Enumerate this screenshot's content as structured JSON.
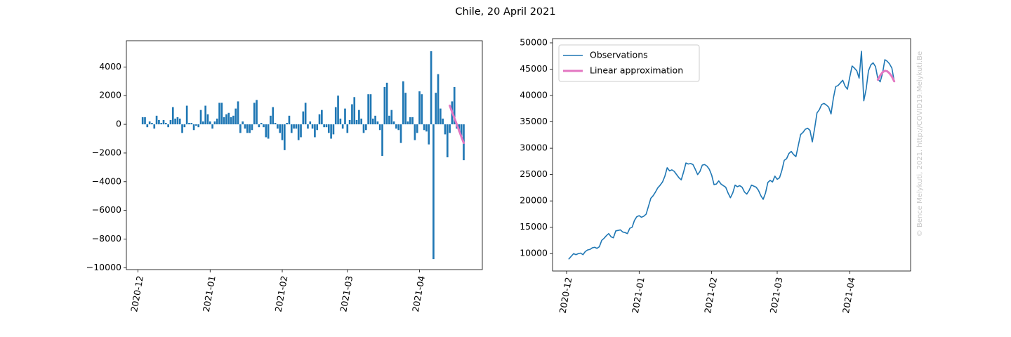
{
  "title": "Chile, 20 April 2021",
  "annotation": "© Bence Melykuti, 2021. http://COVID19.Melykuti.Be",
  "chart_data": [
    {
      "type": "bar",
      "xlim": [
        -5,
        148
      ],
      "xticks": [
        {
          "value": 0,
          "label": "2020-12"
        },
        {
          "value": 31,
          "label": "2021-01"
        },
        {
          "value": 62,
          "label": "2021-02"
        },
        {
          "value": 90,
          "label": "2021-03"
        },
        {
          "value": 121,
          "label": "2021-04"
        }
      ],
      "ylim": [
        -10130,
        5830
      ],
      "yticks": [
        {
          "value": -10000,
          "label": "−10000"
        },
        {
          "value": -8000,
          "label": "−8000"
        },
        {
          "value": -6000,
          "label": "−6000"
        },
        {
          "value": -4000,
          "label": "−4000"
        },
        {
          "value": -2000,
          "label": "−2000"
        },
        0,
        2000,
        4000
      ],
      "series": [
        {
          "type": "bar",
          "color": "#1f77b4",
          "x": [
            2,
            3,
            4,
            5,
            6,
            7,
            8,
            9,
            10,
            11,
            12,
            13,
            14,
            15,
            16,
            17,
            18,
            19,
            20,
            21,
            22,
            23,
            24,
            25,
            26,
            27,
            28,
            29,
            30,
            31,
            32,
            33,
            34,
            35,
            36,
            37,
            38,
            39,
            40,
            41,
            42,
            43,
            44,
            45,
            46,
            47,
            48,
            49,
            50,
            51,
            52,
            53,
            54,
            55,
            56,
            57,
            58,
            59,
            60,
            61,
            62,
            63,
            64,
            65,
            66,
            67,
            68,
            69,
            70,
            71,
            72,
            73,
            74,
            75,
            76,
            77,
            78,
            79,
            80,
            81,
            82,
            83,
            84,
            85,
            86,
            87,
            88,
            89,
            90,
            91,
            92,
            93,
            94,
            95,
            96,
            97,
            98,
            99,
            100,
            101,
            102,
            103,
            104,
            105,
            106,
            107,
            108,
            109,
            110,
            111,
            112,
            113,
            114,
            115,
            116,
            117,
            118,
            119,
            120,
            121,
            122,
            123,
            124,
            125,
            126,
            127,
            128,
            129,
            130,
            131,
            132,
            133,
            134,
            135,
            136,
            137,
            138,
            139,
            140
          ],
          "values": [
            500,
            500,
            -200,
            200,
            100,
            -300,
            600,
            300,
            100,
            300,
            100,
            -200,
            300,
            1200,
            400,
            500,
            400,
            -600,
            -200,
            1300,
            100,
            100,
            -400,
            -100,
            -200,
            1000,
            200,
            1300,
            700,
            200,
            -300,
            200,
            400,
            1500,
            1500,
            500,
            700,
            800,
            500,
            600,
            1100,
            1600,
            -600,
            200,
            -300,
            -600,
            -600,
            -400,
            1500,
            1700,
            -200,
            100,
            -200,
            -900,
            -1000,
            600,
            1200,
            100,
            -300,
            -600,
            -1100,
            -1800,
            100,
            600,
            -600,
            -300,
            -300,
            -1100,
            -900,
            900,
            1500,
            -300,
            200,
            -300,
            -900,
            -400,
            700,
            1000,
            -200,
            -200,
            -600,
            -1000,
            -700,
            1200,
            2000,
            400,
            -300,
            1100,
            -600,
            300,
            1400,
            1900,
            300,
            1000,
            400,
            -600,
            -400,
            2100,
            2100,
            400,
            600,
            200,
            -400,
            -2200,
            2600,
            2900,
            600,
            1000,
            200,
            -300,
            -400,
            -1300,
            3000,
            2200,
            200,
            500,
            500,
            -1100,
            -600,
            2300,
            2100,
            -400,
            -500,
            -1400,
            5100,
            -9400,
            2200,
            3500,
            1100,
            400,
            -700,
            -2300,
            -600,
            1600,
            2600,
            -300,
            -500,
            -800,
            -2500
          ]
        },
        {
          "type": "line",
          "color": "#e377c2",
          "x": [
            134,
            135,
            136,
            137,
            138,
            139,
            140
          ],
          "values": [
            1300,
            870,
            430,
            0,
            -430,
            -870,
            -1300
          ]
        }
      ]
    },
    {
      "type": "line",
      "xlim": [
        -6,
        147
      ],
      "xticks": [
        {
          "value": 0,
          "label": "2020-12"
        },
        {
          "value": 31,
          "label": "2021-01"
        },
        {
          "value": 62,
          "label": "2021-02"
        },
        {
          "value": 90,
          "label": "2021-03"
        },
        {
          "value": 121,
          "label": "2021-04"
        }
      ],
      "ylim": [
        6700,
        50800
      ],
      "yticks": [
        10000,
        15000,
        20000,
        25000,
        30000,
        35000,
        40000,
        45000,
        50000
      ],
      "legend": "upper left",
      "series": [
        {
          "name": "Observations",
          "type": "line",
          "color": "#1f77b4",
          "x": [
            1,
            2,
            3,
            4,
            5,
            6,
            7,
            8,
            9,
            10,
            11,
            12,
            13,
            14,
            15,
            16,
            17,
            18,
            19,
            20,
            21,
            22,
            23,
            24,
            25,
            26,
            27,
            28,
            29,
            30,
            31,
            32,
            33,
            34,
            35,
            36,
            37,
            38,
            39,
            40,
            41,
            42,
            43,
            44,
            45,
            46,
            47,
            48,
            49,
            50,
            51,
            52,
            53,
            54,
            55,
            56,
            57,
            58,
            59,
            60,
            61,
            62,
            63,
            64,
            65,
            66,
            67,
            68,
            69,
            70,
            71,
            72,
            73,
            74,
            75,
            76,
            77,
            78,
            79,
            80,
            81,
            82,
            83,
            84,
            85,
            86,
            87,
            88,
            89,
            90,
            91,
            92,
            93,
            94,
            95,
            96,
            97,
            98,
            99,
            100,
            101,
            102,
            103,
            104,
            105,
            106,
            107,
            108,
            109,
            110,
            111,
            112,
            113,
            114,
            115,
            116,
            117,
            118,
            119,
            120,
            121,
            122,
            123,
            124,
            125,
            126,
            127,
            128,
            129,
            130,
            131,
            132,
            133,
            134,
            135,
            136,
            137,
            138,
            139,
            140
          ],
          "values": [
            9000,
            9500,
            10000,
            9800,
            10000,
            10100,
            9800,
            10400,
            10700,
            10800,
            11100,
            11200,
            11000,
            11300,
            12500,
            12900,
            13400,
            13800,
            13200,
            13000,
            14300,
            14400,
            14500,
            14100,
            14000,
            13800,
            14800,
            15000,
            16300,
            17000,
            17200,
            16900,
            17100,
            17500,
            19000,
            20500,
            21000,
            21700,
            22500,
            23000,
            23600,
            24700,
            26300,
            25700,
            25900,
            25600,
            25000,
            24400,
            24000,
            25500,
            27200,
            27000,
            27100,
            26900,
            26000,
            25000,
            25600,
            26800,
            26900,
            26600,
            26000,
            24900,
            23100,
            23200,
            23800,
            23200,
            22900,
            22600,
            21500,
            20600,
            21500,
            23000,
            22700,
            22900,
            22600,
            21700,
            21300,
            22000,
            23000,
            22800,
            22600,
            22000,
            21000,
            20300,
            21500,
            23500,
            23900,
            23600,
            24700,
            24100,
            24400,
            25800,
            27700,
            28000,
            29000,
            29400,
            28800,
            28400,
            30500,
            32600,
            33000,
            33600,
            33800,
            33400,
            31200,
            33800,
            36700,
            37300,
            38300,
            38500,
            38200,
            37800,
            36500,
            39500,
            41700,
            41900,
            42400,
            42900,
            41800,
            41200,
            43500,
            45600,
            45200,
            44700,
            43300,
            48400,
            39000,
            41200,
            44700,
            45800,
            46200,
            45500,
            43200,
            42600,
            44200,
            46800,
            46500,
            46000,
            45200,
            42700
          ]
        },
        {
          "name": "Linear approximation",
          "type": "line",
          "color": "#e377c2",
          "x": [
            133,
            134,
            135,
            136,
            137,
            138,
            139,
            140
          ],
          "values": [
            43000,
            43800,
            44400,
            44700,
            44600,
            44200,
            43600,
            42700
          ]
        }
      ]
    }
  ]
}
